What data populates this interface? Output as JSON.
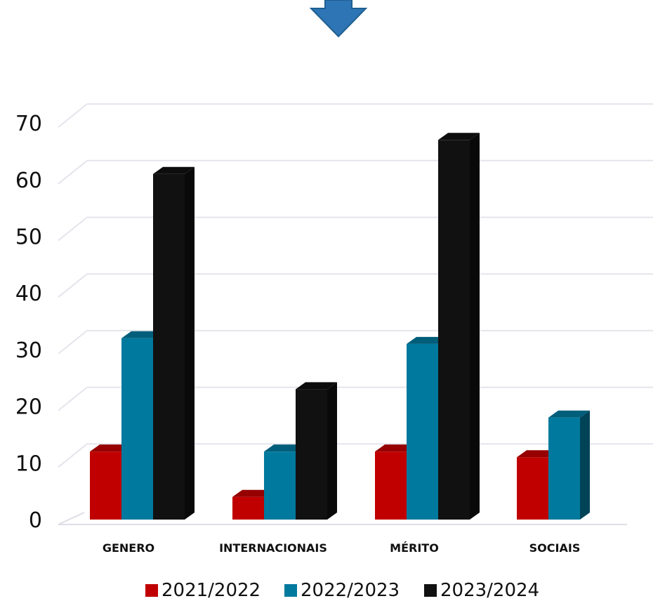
{
  "chart_data": {
    "type": "bar",
    "categories": [
      "GENERO",
      "INTERNACIONAIS",
      "MÉRITO",
      "SOCIAIS"
    ],
    "series": [
      {
        "name": "2021/2022",
        "values": [
          12,
          4,
          12,
          11
        ],
        "color": "#c00000"
      },
      {
        "name": "2022/2023",
        "values": [
          32,
          12,
          31,
          18
        ],
        "color": "#00799e"
      },
      {
        "name": "2023/2024",
        "values": [
          61,
          23,
          67,
          null
        ],
        "color": "#111111"
      }
    ],
    "ylim": [
      0,
      70
    ],
    "yticks": [
      0,
      10,
      20,
      30,
      40,
      50,
      60,
      70
    ],
    "grid": true,
    "legend_position": "bottom",
    "style": "3d-column"
  },
  "decorations": {
    "arrow_icon": "down-arrow-icon",
    "arrow_color": "#2e75b6"
  }
}
